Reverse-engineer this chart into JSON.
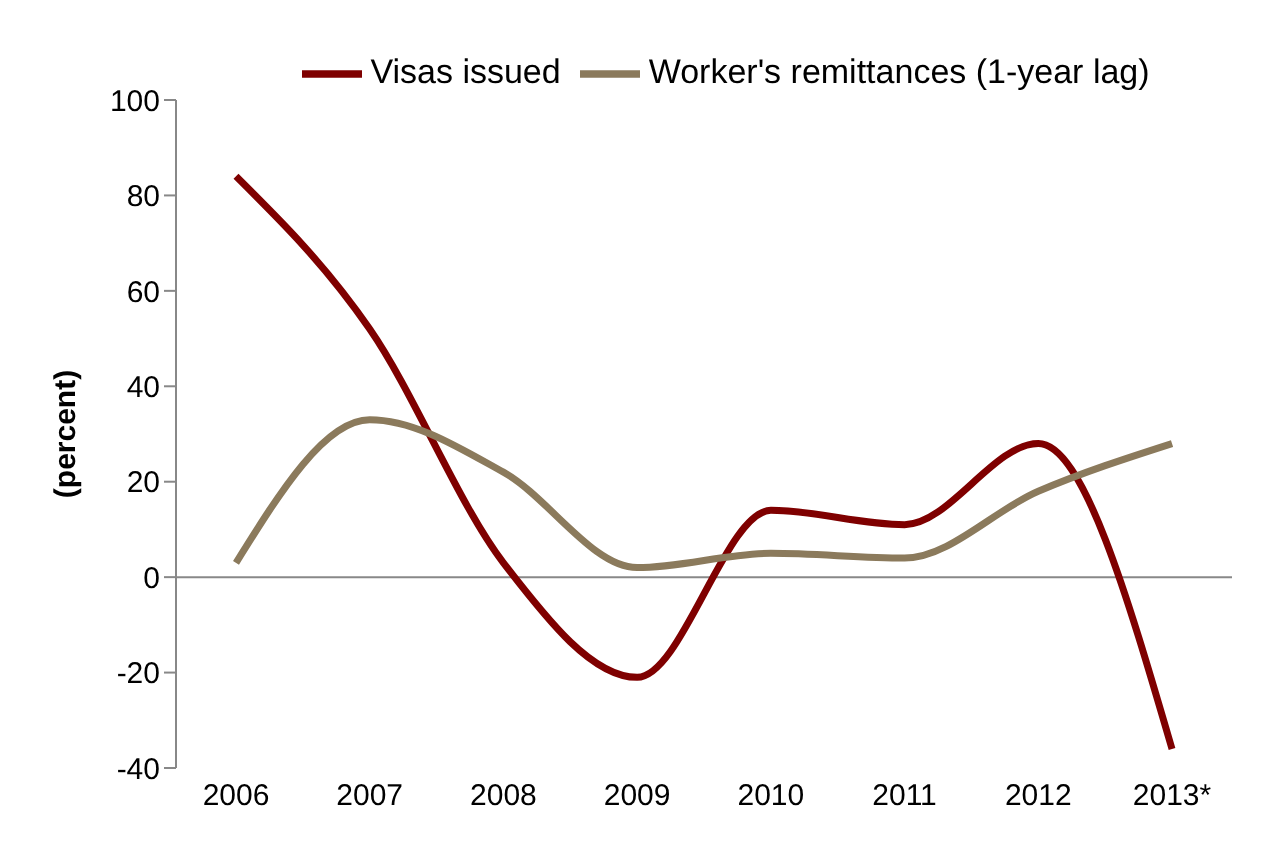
{
  "chart_data": {
    "type": "line",
    "ylabel": "(percent)",
    "categories": [
      "2006",
      "2007",
      "2008",
      "2009",
      "2010",
      "2011",
      "2012",
      "2013*"
    ],
    "series": [
      {
        "name": "Visas issued",
        "color": "#7f0000",
        "values": [
          84,
          52,
          3,
          -21,
          14,
          11,
          28,
          -36
        ]
      },
      {
        "name": "Worker's remittances (1-year lag)",
        "color": "#8b7a5c",
        "values": [
          3,
          33,
          22,
          2,
          5,
          4,
          18,
          28
        ]
      }
    ],
    "ylim": [
      -40,
      100
    ],
    "yticks": [
      -40,
      -20,
      0,
      20,
      40,
      60,
      80,
      100
    ],
    "grid": false,
    "legend": "top",
    "marker": "none",
    "line_style": "solid",
    "ref_lines": [
      {
        "axis": "y",
        "value": 0,
        "color": "#888888"
      }
    ]
  }
}
